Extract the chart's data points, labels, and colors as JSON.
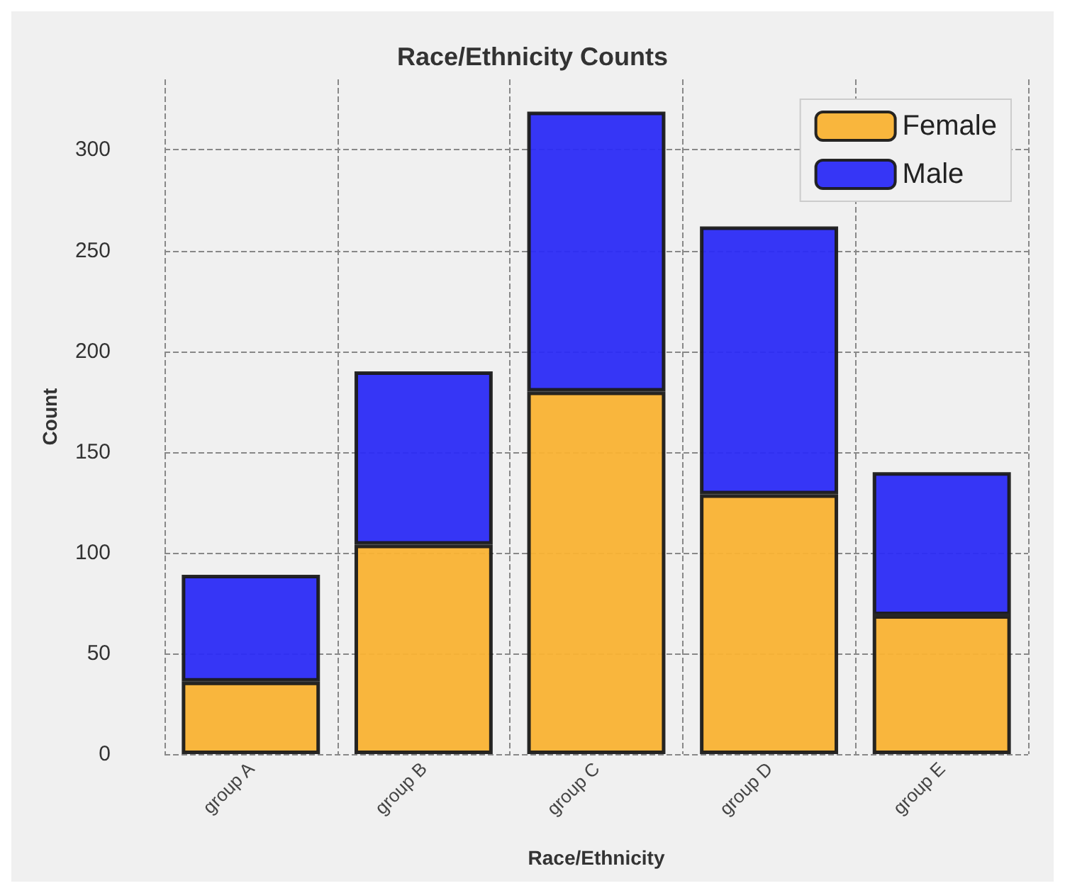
{
  "chart_data": {
    "type": "bar",
    "title": "Race/Ethnicity Counts",
    "xlabel": "Race/Ethnicity",
    "ylabel": "Count",
    "categories": [
      "group A",
      "group B",
      "group C",
      "group D",
      "group E"
    ],
    "stacked": true,
    "series": [
      {
        "name": "Female",
        "color": "#f9b233",
        "values": [
          36,
          104,
          180,
          129,
          69
        ]
      },
      {
        "name": "Male",
        "color": "#2b2bf5",
        "values": [
          53,
          86,
          139,
          133,
          71
        ]
      }
    ],
    "ylim": [
      0,
      335
    ],
    "yticks": [
      0,
      50,
      100,
      150,
      200,
      250,
      300
    ],
    "grid": true,
    "legend": "top right"
  }
}
